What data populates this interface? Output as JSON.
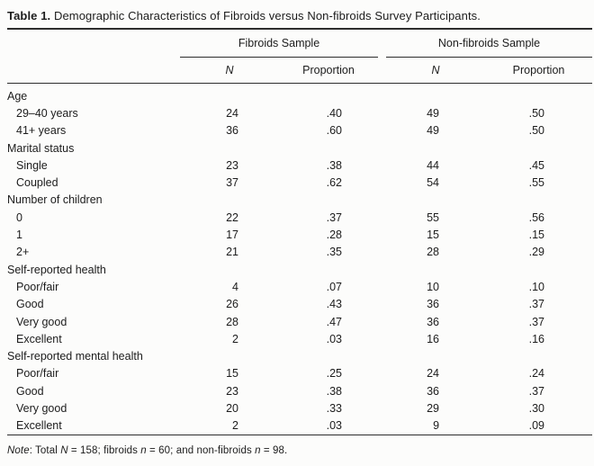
{
  "title_parts": [
    {
      "text": "Table 1.",
      "style": "bold"
    },
    {
      "text": "  Demographic Characteristics of Fibroids versus Non-fibroids Survey Participants.",
      "style": "normal"
    }
  ],
  "table": {
    "groups": [
      "Fibroids Sample",
      "Non-fibroids Sample"
    ],
    "subheaders": [
      "N",
      "Proportion",
      "N",
      "Proportion"
    ],
    "rows": [
      {
        "type": "group",
        "label": "Age"
      },
      {
        "type": "item",
        "label": "29–40 years",
        "f_n": "24",
        "f_prop": ".40",
        "nf_n": "49",
        "nf_prop": ".50"
      },
      {
        "type": "item",
        "label": "41+ years",
        "f_n": "36",
        "f_prop": ".60",
        "nf_n": "49",
        "nf_prop": ".50"
      },
      {
        "type": "group",
        "label": "Marital status"
      },
      {
        "type": "item",
        "label": "Single",
        "f_n": "23",
        "f_prop": ".38",
        "nf_n": "44",
        "nf_prop": ".45"
      },
      {
        "type": "item",
        "label": "Coupled",
        "f_n": "37",
        "f_prop": ".62",
        "nf_n": "54",
        "nf_prop": ".55"
      },
      {
        "type": "group",
        "label": "Number of children"
      },
      {
        "type": "item",
        "label": "0",
        "f_n": "22",
        "f_prop": ".37",
        "nf_n": "55",
        "nf_prop": ".56"
      },
      {
        "type": "item",
        "label": "1",
        "f_n": "17",
        "f_prop": ".28",
        "nf_n": "15",
        "nf_prop": ".15"
      },
      {
        "type": "item",
        "label": "2+",
        "f_n": "21",
        "f_prop": ".35",
        "nf_n": "28",
        "nf_prop": ".29"
      },
      {
        "type": "group",
        "label": "Self-reported health"
      },
      {
        "type": "item",
        "label": "Poor/fair",
        "f_n": "4",
        "f_prop": ".07",
        "nf_n": "10",
        "nf_prop": ".10"
      },
      {
        "type": "item",
        "label": "Good",
        "f_n": "26",
        "f_prop": ".43",
        "nf_n": "36",
        "nf_prop": ".37"
      },
      {
        "type": "item",
        "label": "Very good",
        "f_n": "28",
        "f_prop": ".47",
        "nf_n": "36",
        "nf_prop": ".37"
      },
      {
        "type": "item",
        "label": "Excellent",
        "f_n": "2",
        "f_prop": ".03",
        "nf_n": "16",
        "nf_prop": ".16"
      },
      {
        "type": "group",
        "label": "Self-reported mental health"
      },
      {
        "type": "item",
        "label": "Poor/fair",
        "f_n": "15",
        "f_prop": ".25",
        "nf_n": "24",
        "nf_prop": ".24"
      },
      {
        "type": "item",
        "label": "Good",
        "f_n": "23",
        "f_prop": ".38",
        "nf_n": "36",
        "nf_prop": ".37"
      },
      {
        "type": "item",
        "label": "Very good",
        "f_n": "20",
        "f_prop": ".33",
        "nf_n": "29",
        "nf_prop": ".30"
      },
      {
        "type": "item",
        "label": "Excellent",
        "f_n": "2",
        "f_prop": ".03",
        "nf_n": "9",
        "nf_prop": ".09"
      }
    ]
  },
  "note_parts": [
    {
      "text": "Note",
      "style": "italic"
    },
    {
      "text": ": Total ",
      "style": "normal"
    },
    {
      "text": "N",
      "style": "italic"
    },
    {
      "text": " = 158; fibroids ",
      "style": "normal"
    },
    {
      "text": "n",
      "style": "italic"
    },
    {
      "text": " = 60; and non-fibroids ",
      "style": "normal"
    },
    {
      "text": "n",
      "style": "italic"
    },
    {
      "text": " = 98.",
      "style": "normal"
    }
  ],
  "colors": {
    "rule": "#2d2d2d",
    "text": "#1c1c1c",
    "background": "#fcfcfb"
  }
}
